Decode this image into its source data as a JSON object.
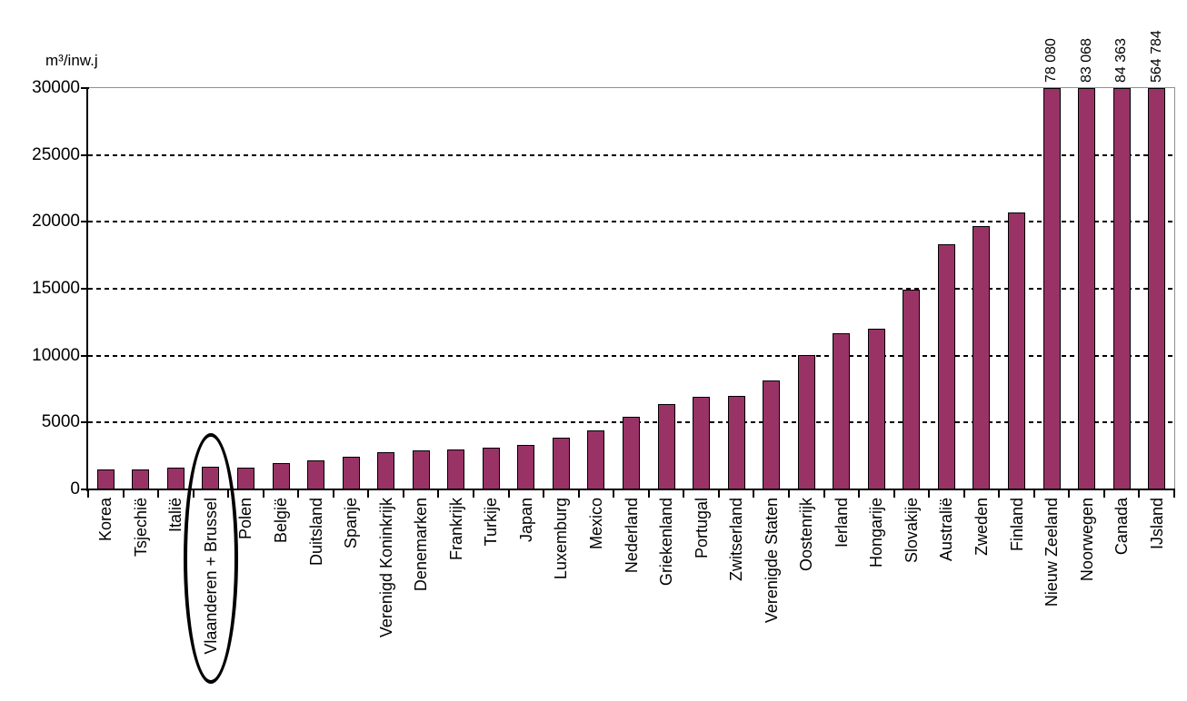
{
  "chart_data": {
    "type": "bar",
    "title": "",
    "ylabel": "m³/inw.j",
    "xlabel": "",
    "ylim": [
      0,
      30000
    ],
    "yticks": [
      0,
      5000,
      10000,
      15000,
      20000,
      25000,
      30000
    ],
    "ytick_labels": [
      "0",
      "5000",
      "10000",
      "15000",
      "20000",
      "25000",
      "30000"
    ],
    "grid": "horizontal-dashed",
    "legend": "none",
    "bar_color": "#993366",
    "bar_border_color": "#000000",
    "categories": [
      "Korea",
      "Tsjechië",
      "Italië",
      "Vlaanderen + Brussel",
      "Polen",
      "België",
      "Duitsland",
      "Spanje",
      "Verenigd Koninkrijk",
      "Denemarken",
      "Frankrijk",
      "Turkije",
      "Japan",
      "Luxemburg",
      "Mexico",
      "Nederland",
      "Griekenland",
      "Portugal",
      "Zwitserland",
      "Verenigde Staten",
      "Oostenrijk",
      "Ierland",
      "Hongarije",
      "Slovakije",
      "Australië",
      "Zweden",
      "Finland",
      "Nieuw Zeeland",
      "Noorwegen",
      "Canada",
      "IJsland"
    ],
    "values": [
      1500,
      1500,
      1650,
      1700,
      1650,
      2000,
      2200,
      2450,
      2750,
      2900,
      3000,
      3100,
      3300,
      3850,
      4400,
      5450,
      6400,
      6900,
      7000,
      8150,
      10050,
      11700,
      12000,
      14900,
      18300,
      19700,
      20700,
      78080,
      83068,
      84363,
      564784
    ],
    "overflow_value_labels": [
      "",
      "",
      "",
      "",
      "",
      "",
      "",
      "",
      "",
      "",
      "",
      "",
      "",
      "",
      "",
      "",
      "",
      "",
      "",
      "",
      "",
      "",
      "",
      "",
      "",
      "",
      "",
      "78 080",
      "83 068",
      "84 363",
      "564 784"
    ],
    "annotation": {
      "shape": "ellipse",
      "circled_category": "Vlaanderen + Brussel"
    }
  }
}
